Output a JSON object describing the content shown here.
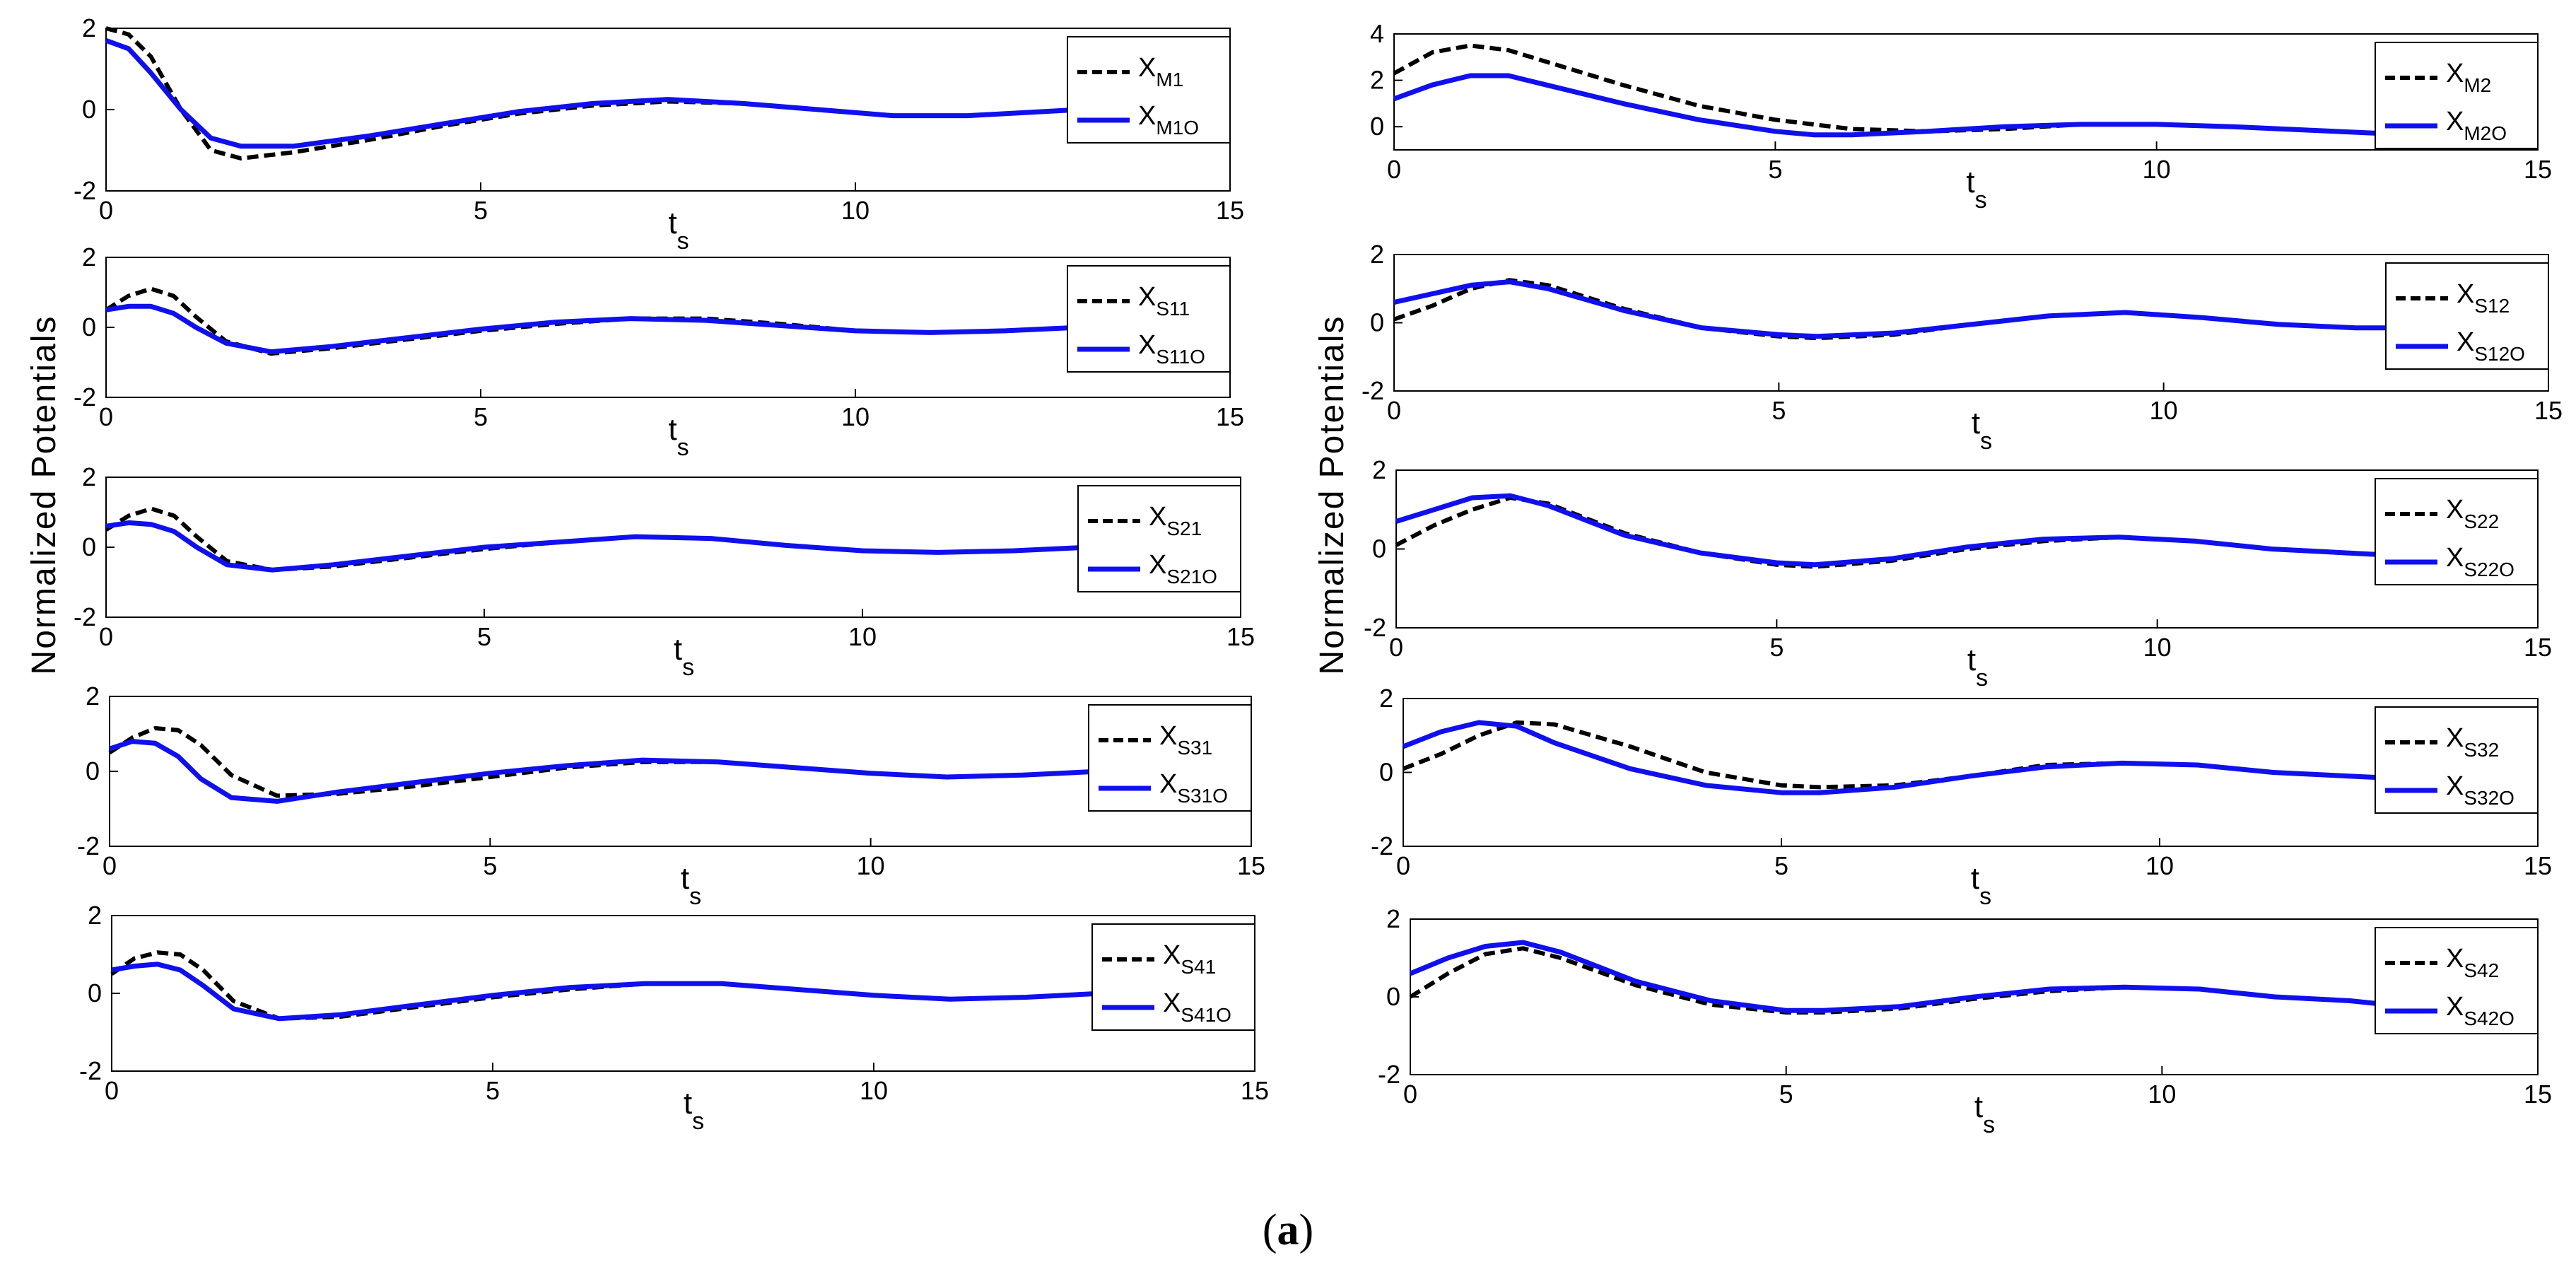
{
  "figure": {
    "ylabel": "Normalized Potentials",
    "caption": {
      "open": "(",
      "letter": "a",
      "close": ")"
    },
    "colors": {
      "reference": "#000000",
      "observer": "#1010ee"
    }
  },
  "chart_data": [
    {
      "type": "line",
      "column": "left",
      "xlabel": "t",
      "xlabel_sub": "s",
      "xlim": [
        0,
        15
      ],
      "ylim": [
        -2,
        2
      ],
      "xticks": [
        0,
        5,
        10,
        15
      ],
      "yticks": [
        -2,
        0,
        2
      ],
      "series": [
        {
          "name": "X",
          "sub": "M1",
          "style": "dashed",
          "x": [
            0,
            0.3,
            0.6,
            1.0,
            1.4,
            1.8,
            2.5,
            3.5,
            4.5,
            5.5,
            6.5,
            7.5,
            8.5,
            9.5,
            10.5,
            11.5,
            12.5,
            13.0
          ],
          "y": [
            2.0,
            1.85,
            1.3,
            0.0,
            -1.0,
            -1.2,
            -1.05,
            -0.75,
            -0.4,
            -0.1,
            0.1,
            0.2,
            0.15,
            0.0,
            -0.15,
            -0.15,
            -0.05,
            0.0
          ]
        },
        {
          "name": "X",
          "sub": "M1O",
          "style": "solid",
          "x": [
            0,
            0.3,
            0.6,
            1.0,
            1.4,
            1.8,
            2.5,
            3.5,
            4.5,
            5.5,
            6.5,
            7.5,
            8.5,
            9.5,
            10.5,
            11.5,
            12.5,
            13.0
          ],
          "y": [
            1.7,
            1.5,
            0.9,
            0.0,
            -0.7,
            -0.9,
            -0.9,
            -0.65,
            -0.35,
            -0.05,
            0.15,
            0.25,
            0.15,
            0.0,
            -0.15,
            -0.15,
            -0.05,
            0.0
          ]
        }
      ]
    },
    {
      "type": "line",
      "column": "right",
      "xlabel": "t",
      "xlabel_sub": "s",
      "xlim": [
        0,
        15
      ],
      "ylim": [
        -1,
        4
      ],
      "xticks": [
        0,
        5,
        10,
        15
      ],
      "yticks": [
        0,
        2,
        4
      ],
      "series": [
        {
          "name": "X",
          "sub": "M2",
          "style": "dashed",
          "x": [
            0,
            0.5,
            1.0,
            1.5,
            2.0,
            3.0,
            4.0,
            5.0,
            6.0,
            7.0,
            8.0,
            9.0,
            10.0,
            11.0,
            12.0,
            13.0
          ],
          "y": [
            2.3,
            3.2,
            3.5,
            3.3,
            2.8,
            1.8,
            0.9,
            0.3,
            -0.1,
            -0.2,
            -0.1,
            0.1,
            0.1,
            0.0,
            -0.15,
            -0.3
          ]
        },
        {
          "name": "X",
          "sub": "M2O",
          "style": "solid",
          "x": [
            0,
            0.5,
            1.0,
            1.5,
            2.0,
            3.0,
            4.0,
            5.0,
            5.5,
            6.0,
            7.0,
            8.0,
            9.0,
            10.0,
            11.0,
            12.0,
            13.0
          ],
          "y": [
            1.2,
            1.8,
            2.2,
            2.2,
            1.8,
            1.0,
            0.3,
            -0.2,
            -0.35,
            -0.35,
            -0.2,
            0.0,
            0.1,
            0.1,
            0.0,
            -0.15,
            -0.3
          ]
        }
      ]
    },
    {
      "type": "line",
      "column": "left",
      "xlabel": "t",
      "xlabel_sub": "s",
      "xlim": [
        0,
        15
      ],
      "ylim": [
        -2,
        2
      ],
      "xticks": [
        0,
        5,
        10,
        15
      ],
      "yticks": [
        -2,
        0,
        2
      ],
      "series": [
        {
          "name": "X",
          "sub": "S11",
          "style": "dashed",
          "x": [
            0,
            0.3,
            0.6,
            0.9,
            1.2,
            1.6,
            2.2,
            3.0,
            4.0,
            5.0,
            6.0,
            7.0,
            8.0,
            9.0,
            10.0,
            11.0,
            12.0,
            13.0
          ],
          "y": [
            0.5,
            0.9,
            1.1,
            0.9,
            0.3,
            -0.4,
            -0.75,
            -0.6,
            -0.35,
            -0.1,
            0.1,
            0.25,
            0.25,
            0.1,
            -0.1,
            -0.15,
            -0.1,
            0.0
          ]
        },
        {
          "name": "X",
          "sub": "S11O",
          "style": "solid",
          "x": [
            0,
            0.3,
            0.6,
            0.9,
            1.2,
            1.6,
            2.2,
            3.0,
            4.0,
            5.0,
            6.0,
            7.0,
            8.0,
            9.0,
            10.0,
            11.0,
            12.0,
            13.0
          ],
          "y": [
            0.5,
            0.6,
            0.6,
            0.4,
            0.0,
            -0.45,
            -0.7,
            -0.55,
            -0.3,
            -0.05,
            0.15,
            0.25,
            0.2,
            0.05,
            -0.1,
            -0.15,
            -0.1,
            0.0
          ]
        }
      ]
    },
    {
      "type": "line",
      "column": "right",
      "xlabel": "t",
      "xlabel_sub": "s",
      "xlim": [
        0,
        15
      ],
      "ylim": [
        -2,
        2
      ],
      "xticks": [
        0,
        5,
        10,
        15
      ],
      "yticks": [
        -2,
        0,
        2
      ],
      "series": [
        {
          "name": "X",
          "sub": "S12",
          "style": "dashed",
          "x": [
            0,
            0.5,
            1.0,
            1.5,
            2.0,
            3.0,
            4.0,
            5.0,
            5.5,
            6.5,
            7.5,
            8.5,
            9.5,
            10.5,
            11.5,
            12.5,
            13.0
          ],
          "y": [
            0.1,
            0.5,
            1.0,
            1.25,
            1.1,
            0.4,
            -0.15,
            -0.4,
            -0.45,
            -0.35,
            -0.05,
            0.2,
            0.3,
            0.15,
            -0.05,
            -0.15,
            -0.15
          ]
        },
        {
          "name": "X",
          "sub": "S12O",
          "style": "solid",
          "x": [
            0,
            0.5,
            1.0,
            1.5,
            2.0,
            3.0,
            4.0,
            5.0,
            5.5,
            6.5,
            7.5,
            8.5,
            9.5,
            10.5,
            11.5,
            12.5,
            13.0
          ],
          "y": [
            0.6,
            0.85,
            1.1,
            1.2,
            1.0,
            0.35,
            -0.15,
            -0.35,
            -0.4,
            -0.3,
            -0.05,
            0.2,
            0.3,
            0.15,
            -0.05,
            -0.15,
            -0.15
          ]
        }
      ]
    },
    {
      "type": "line",
      "column": "left",
      "xlabel": "t",
      "xlabel_sub": "s",
      "xlim": [
        0,
        15
      ],
      "ylim": [
        -2,
        2
      ],
      "xticks": [
        0,
        5,
        10,
        15
      ],
      "yticks": [
        -2,
        0,
        2
      ],
      "series": [
        {
          "name": "X",
          "sub": "S21",
          "style": "dashed",
          "x": [
            0,
            0.3,
            0.6,
            0.9,
            1.2,
            1.6,
            2.2,
            3.0,
            4.0,
            5.0,
            6.0,
            7.0,
            8.0,
            9.0,
            10.0,
            11.0,
            12.0,
            13.0
          ],
          "y": [
            0.5,
            0.9,
            1.1,
            0.9,
            0.3,
            -0.4,
            -0.65,
            -0.55,
            -0.3,
            -0.05,
            0.15,
            0.3,
            0.25,
            0.05,
            -0.1,
            -0.15,
            -0.1,
            0.0
          ]
        },
        {
          "name": "X",
          "sub": "S21O",
          "style": "solid",
          "x": [
            0,
            0.3,
            0.6,
            0.9,
            1.2,
            1.6,
            2.2,
            3.0,
            4.0,
            5.0,
            6.0,
            7.0,
            8.0,
            9.0,
            10.0,
            11.0,
            12.0,
            13.0
          ],
          "y": [
            0.6,
            0.7,
            0.65,
            0.45,
            0.0,
            -0.5,
            -0.65,
            -0.5,
            -0.25,
            0.0,
            0.15,
            0.3,
            0.25,
            0.05,
            -0.1,
            -0.15,
            -0.1,
            0.0
          ]
        }
      ]
    },
    {
      "type": "line",
      "column": "right",
      "xlabel": "t",
      "xlabel_sub": "s",
      "xlim": [
        0,
        15
      ],
      "ylim": [
        -2,
        2
      ],
      "xticks": [
        0,
        5,
        10,
        15
      ],
      "yticks": [
        -2,
        0,
        2
      ],
      "series": [
        {
          "name": "X",
          "sub": "S22",
          "style": "dashed",
          "x": [
            0,
            0.5,
            1.0,
            1.5,
            2.0,
            3.0,
            4.0,
            5.0,
            5.5,
            6.5,
            7.5,
            8.5,
            9.5,
            10.5,
            11.5,
            12.5,
            13.0
          ],
          "y": [
            0.1,
            0.6,
            1.0,
            1.3,
            1.15,
            0.4,
            -0.1,
            -0.4,
            -0.45,
            -0.3,
            0.0,
            0.2,
            0.3,
            0.2,
            0.0,
            -0.1,
            -0.15
          ]
        },
        {
          "name": "X",
          "sub": "S22O",
          "style": "solid",
          "x": [
            0,
            0.5,
            1.0,
            1.5,
            2.0,
            3.0,
            4.0,
            5.0,
            5.5,
            6.5,
            7.5,
            8.5,
            9.5,
            10.5,
            11.5,
            12.5,
            13.0
          ],
          "y": [
            0.7,
            1.0,
            1.3,
            1.35,
            1.1,
            0.35,
            -0.1,
            -0.35,
            -0.4,
            -0.25,
            0.05,
            0.25,
            0.3,
            0.2,
            0.0,
            -0.1,
            -0.15
          ]
        }
      ]
    },
    {
      "type": "line",
      "column": "left",
      "xlabel": "t",
      "xlabel_sub": "s",
      "xlim": [
        0,
        15
      ],
      "ylim": [
        -2,
        2
      ],
      "xticks": [
        0,
        5,
        10,
        15
      ],
      "yticks": [
        -2,
        0,
        2
      ],
      "series": [
        {
          "name": "X",
          "sub": "S31",
          "style": "dashed",
          "x": [
            0,
            0.3,
            0.6,
            0.9,
            1.2,
            1.6,
            2.2,
            3.0,
            4.0,
            5.0,
            6.0,
            7.0,
            8.0,
            9.0,
            10.0,
            11.0,
            12.0,
            13.0
          ],
          "y": [
            0.5,
            0.9,
            1.15,
            1.1,
            0.7,
            -0.1,
            -0.65,
            -0.6,
            -0.4,
            -0.15,
            0.1,
            0.25,
            0.25,
            0.1,
            -0.05,
            -0.15,
            -0.1,
            0.0
          ]
        },
        {
          "name": "X",
          "sub": "S31O",
          "style": "solid",
          "x": [
            0,
            0.3,
            0.6,
            0.9,
            1.2,
            1.6,
            2.2,
            3.0,
            4.0,
            5.0,
            6.0,
            7.0,
            8.0,
            9.0,
            10.0,
            11.0,
            12.0,
            13.0
          ],
          "y": [
            0.6,
            0.8,
            0.75,
            0.4,
            -0.2,
            -0.7,
            -0.8,
            -0.55,
            -0.3,
            -0.05,
            0.15,
            0.3,
            0.25,
            0.1,
            -0.05,
            -0.15,
            -0.1,
            0.0
          ]
        }
      ]
    },
    {
      "type": "line",
      "column": "right",
      "xlabel": "t",
      "xlabel_sub": "s",
      "xlim": [
        0,
        15
      ],
      "ylim": [
        -2,
        2
      ],
      "xticks": [
        0,
        5,
        10,
        15
      ],
      "yticks": [
        -2,
        0,
        2
      ],
      "series": [
        {
          "name": "X",
          "sub": "S32",
          "style": "dashed",
          "x": [
            0,
            0.5,
            1.0,
            1.5,
            2.0,
            3.0,
            4.0,
            5.0,
            5.5,
            6.5,
            7.5,
            8.5,
            9.5,
            10.5,
            11.5,
            12.5,
            13.0
          ],
          "y": [
            0.1,
            0.5,
            1.0,
            1.35,
            1.3,
            0.7,
            0.0,
            -0.35,
            -0.4,
            -0.35,
            -0.1,
            0.2,
            0.25,
            0.2,
            0.0,
            -0.1,
            -0.15
          ]
        },
        {
          "name": "X",
          "sub": "S32O",
          "style": "solid",
          "x": [
            0,
            0.5,
            1.0,
            1.5,
            2.0,
            3.0,
            4.0,
            5.0,
            5.5,
            6.5,
            7.5,
            8.5,
            9.5,
            10.5,
            11.5,
            12.5,
            13.0
          ],
          "y": [
            0.7,
            1.1,
            1.35,
            1.25,
            0.8,
            0.1,
            -0.35,
            -0.55,
            -0.55,
            -0.4,
            -0.1,
            0.15,
            0.25,
            0.2,
            0.0,
            -0.1,
            -0.15
          ]
        }
      ]
    },
    {
      "type": "line",
      "column": "left",
      "xlabel": "t",
      "xlabel_sub": "s",
      "xlim": [
        0,
        15
      ],
      "ylim": [
        -2,
        2
      ],
      "xticks": [
        0,
        5,
        10,
        15
      ],
      "yticks": [
        -2,
        0,
        2
      ],
      "series": [
        {
          "name": "X",
          "sub": "S41",
          "style": "dashed",
          "x": [
            0,
            0.3,
            0.6,
            0.9,
            1.2,
            1.6,
            2.2,
            3.0,
            4.0,
            5.0,
            6.0,
            7.0,
            8.0,
            9.0,
            10.0,
            11.0,
            12.0,
            13.0
          ],
          "y": [
            0.5,
            0.9,
            1.05,
            1.0,
            0.6,
            -0.2,
            -0.65,
            -0.6,
            -0.35,
            -0.1,
            0.1,
            0.25,
            0.25,
            0.1,
            -0.05,
            -0.15,
            -0.1,
            0.0
          ]
        },
        {
          "name": "X",
          "sub": "S41O",
          "style": "solid",
          "x": [
            0,
            0.3,
            0.6,
            0.9,
            1.2,
            1.6,
            2.2,
            3.0,
            4.0,
            5.0,
            6.0,
            7.0,
            8.0,
            9.0,
            10.0,
            11.0,
            12.0,
            13.0
          ],
          "y": [
            0.6,
            0.7,
            0.75,
            0.6,
            0.2,
            -0.4,
            -0.65,
            -0.55,
            -0.3,
            -0.05,
            0.15,
            0.25,
            0.25,
            0.1,
            -0.05,
            -0.15,
            -0.1,
            0.0
          ]
        }
      ]
    },
    {
      "type": "line",
      "column": "right",
      "xlabel": "t",
      "xlabel_sub": "s",
      "xlim": [
        0,
        15
      ],
      "ylim": [
        -2,
        2
      ],
      "xticks": [
        0,
        5,
        10,
        15
      ],
      "yticks": [
        -2,
        0,
        2
      ],
      "series": [
        {
          "name": "X",
          "sub": "S42",
          "style": "dashed",
          "x": [
            0,
            0.5,
            1.0,
            1.5,
            2.0,
            3.0,
            4.0,
            5.0,
            5.5,
            6.5,
            7.5,
            8.5,
            9.5,
            10.5,
            11.5,
            12.5,
            13.0
          ],
          "y": [
            0.0,
            0.6,
            1.1,
            1.25,
            1.0,
            0.3,
            -0.2,
            -0.4,
            -0.4,
            -0.3,
            -0.05,
            0.15,
            0.25,
            0.2,
            0.0,
            -0.1,
            -0.2
          ]
        },
        {
          "name": "X",
          "sub": "S42O",
          "style": "solid",
          "x": [
            0,
            0.5,
            1.0,
            1.5,
            2.0,
            3.0,
            4.0,
            5.0,
            5.5,
            6.5,
            7.5,
            8.5,
            9.5,
            10.5,
            11.5,
            12.5,
            13.0
          ],
          "y": [
            0.6,
            1.0,
            1.3,
            1.4,
            1.15,
            0.4,
            -0.1,
            -0.35,
            -0.35,
            -0.25,
            0.0,
            0.2,
            0.25,
            0.2,
            0.0,
            -0.1,
            -0.2
          ]
        }
      ]
    }
  ]
}
